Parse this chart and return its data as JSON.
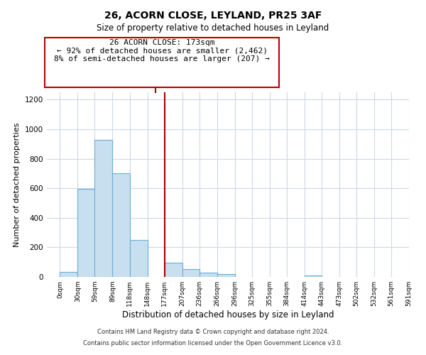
{
  "title": "26, ACORN CLOSE, LEYLAND, PR25 3AF",
  "subtitle": "Size of property relative to detached houses in Leyland",
  "xlabel": "Distribution of detached houses by size in Leyland",
  "ylabel": "Number of detached properties",
  "bar_edges": [
    0,
    30,
    59,
    89,
    118,
    148,
    177,
    207,
    236,
    266,
    296,
    325,
    355,
    384,
    414,
    443,
    473,
    502,
    532,
    561,
    591
  ],
  "bar_heights": [
    35,
    595,
    930,
    700,
    250,
    0,
    95,
    55,
    30,
    18,
    0,
    0,
    0,
    0,
    10,
    0,
    0,
    0,
    0,
    0
  ],
  "bar_color": "#c8dff0",
  "bar_edge_color": "#6aaed6",
  "vline_x": 177,
  "vline_color": "#aa0000",
  "annotation_line1": "26 ACORN CLOSE: 173sqm",
  "annotation_line2": "← 92% of detached houses are smaller (2,462)",
  "annotation_line3": "8% of semi-detached houses are larger (207) →",
  "annotation_box_color": "#bb0000",
  "ylim": [
    0,
    1250
  ],
  "yticks": [
    0,
    200,
    400,
    600,
    800,
    1000,
    1200
  ],
  "xtick_labels": [
    "0sqm",
    "30sqm",
    "59sqm",
    "89sqm",
    "118sqm",
    "148sqm",
    "177sqm",
    "207sqm",
    "236sqm",
    "266sqm",
    "296sqm",
    "325sqm",
    "355sqm",
    "384sqm",
    "414sqm",
    "443sqm",
    "473sqm",
    "502sqm",
    "532sqm",
    "561sqm",
    "591sqm"
  ],
  "footer_line1": "Contains HM Land Registry data © Crown copyright and database right 2024.",
  "footer_line2": "Contains public sector information licensed under the Open Government Licence v3.0.",
  "background_color": "#ffffff",
  "grid_color": "#ccd8e8",
  "title_fontsize": 10,
  "subtitle_fontsize": 8.5,
  "ylabel_fontsize": 8,
  "xlabel_fontsize": 8.5,
  "footer_fontsize": 6,
  "annot_fontsize": 8
}
